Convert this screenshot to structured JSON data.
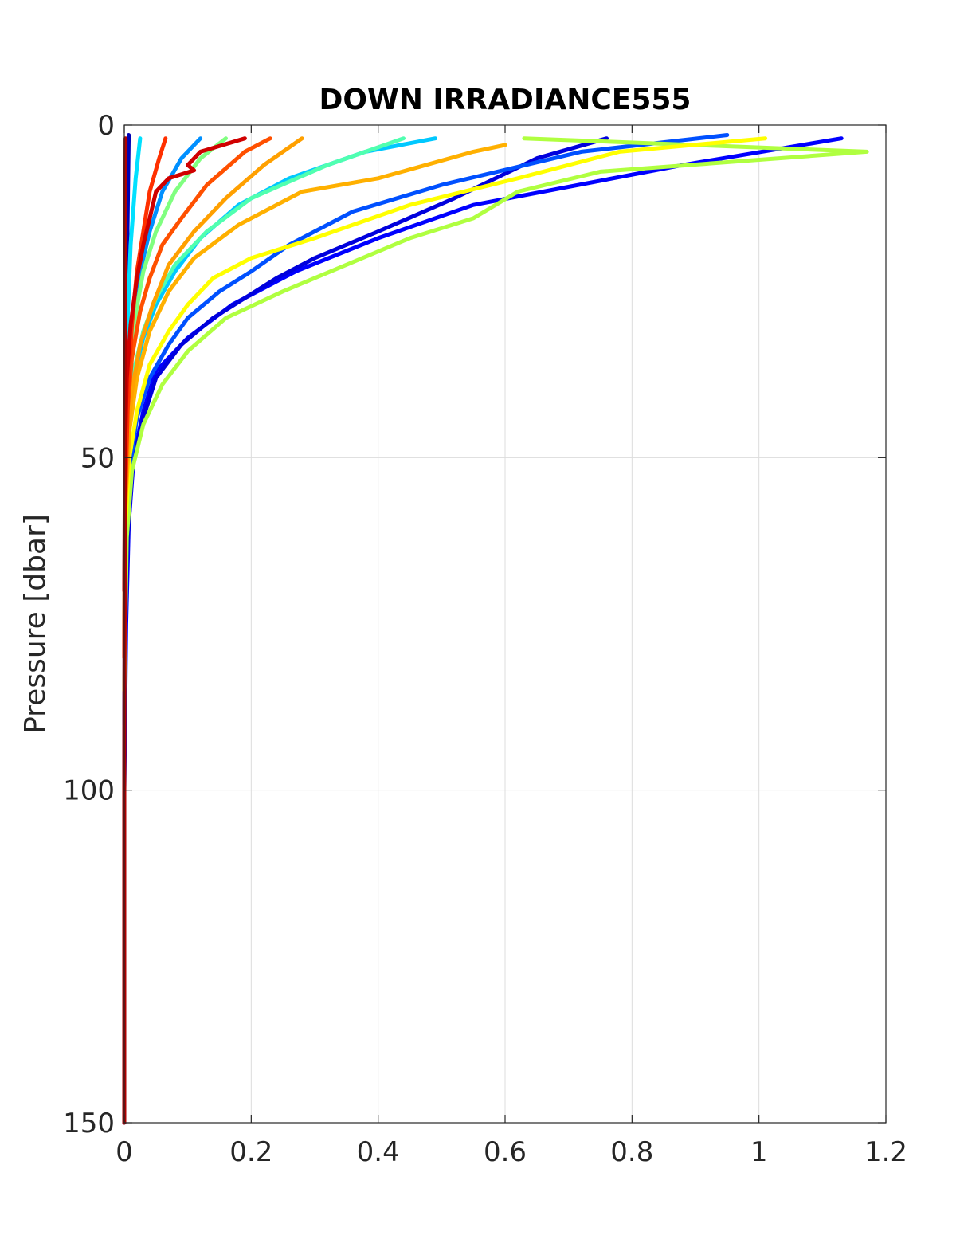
{
  "chart_data": {
    "type": "line",
    "title": "DOWN IRRADIANCE555",
    "xlabel": "",
    "ylabel": "Pressure [dbar]",
    "xlim": [
      0,
      1.2
    ],
    "ylim": [
      0,
      150
    ],
    "y_reversed": true,
    "grid": true,
    "xticks": [
      "0",
      "0.2",
      "0.4",
      "0.6",
      "0.8",
      "1",
      "1.2"
    ],
    "yticks": [
      "0",
      "50",
      "100",
      "150"
    ],
    "series": [
      {
        "color": "#0000b3",
        "x": [
          0.007,
          0.003,
          0.001,
          0,
          0
        ],
        "y": [
          1.5,
          30,
          60,
          100,
          150
        ]
      },
      {
        "color": "#0000ff",
        "x": [
          1.13,
          0.88,
          0.55,
          0.4,
          0.27,
          0.17,
          0.1,
          0.05,
          0.03,
          0.015,
          0.007,
          0.003,
          0
        ],
        "y": [
          2,
          6,
          12,
          17,
          22,
          27,
          32,
          37,
          43,
          50,
          60,
          75,
          100
        ]
      },
      {
        "color": "#0000dd",
        "x": [
          0.76,
          0.65,
          0.52,
          0.4,
          0.3,
          0.24,
          0.19,
          0.14,
          0.09,
          0.05,
          0.03,
          0.012,
          0.004,
          0
        ],
        "y": [
          2,
          5,
          11,
          16,
          20,
          23,
          26,
          29,
          33,
          38,
          44,
          52,
          65,
          90
        ]
      },
      {
        "color": "#0050ff",
        "x": [
          0.95,
          0.72,
          0.5,
          0.36,
          0.26,
          0.2,
          0.15,
          0.1,
          0.07,
          0.04,
          0.02,
          0.008,
          0.002,
          0
        ],
        "y": [
          1.5,
          4,
          9,
          13,
          18,
          22,
          25,
          29,
          33,
          38,
          44,
          52,
          65,
          90
        ]
      },
      {
        "color": "#0090ff",
        "x": [
          0.12,
          0.09,
          0.06,
          0.04,
          0.025,
          0.015,
          0.008,
          0.003,
          0
        ],
        "y": [
          2,
          5,
          10,
          16,
          22,
          30,
          40,
          55,
          80
        ]
      },
      {
        "color": "#00c8ff",
        "x": [
          0.49,
          0.38,
          0.26,
          0.18,
          0.12,
          0.08,
          0.05,
          0.03,
          0.015,
          0.006,
          0.002,
          0
        ],
        "y": [
          2,
          4,
          8,
          12,
          17,
          22,
          27,
          32,
          38,
          46,
          57,
          80
        ]
      },
      {
        "color": "#00e0ff",
        "x": [
          0.025,
          0.018,
          0.01,
          0.005,
          0.002,
          0
        ],
        "y": [
          2,
          8,
          18,
          30,
          45,
          70
        ]
      },
      {
        "color": "#50ffb0",
        "x": [
          0.44,
          0.32,
          0.2,
          0.13,
          0.08,
          0.05,
          0.03,
          0.015,
          0.006,
          0.002,
          0
        ],
        "y": [
          2,
          6,
          11,
          16,
          21,
          26,
          31,
          37,
          45,
          55,
          75
        ]
      },
      {
        "color": "#80ff80",
        "x": [
          0.16,
          0.12,
          0.08,
          0.05,
          0.03,
          0.015,
          0.006,
          0.002,
          0
        ],
        "y": [
          2,
          5,
          10,
          16,
          22,
          30,
          40,
          55,
          80
        ]
      },
      {
        "color": "#b0ff40",
        "x": [
          0.63,
          0.9,
          1.17,
          0.75,
          0.62,
          0.55,
          0.45,
          0.35,
          0.25,
          0.16,
          0.1,
          0.06,
          0.03,
          0.012,
          0.004,
          0
        ],
        "y": [
          2,
          3,
          4,
          7,
          10,
          14,
          17,
          21,
          25,
          29,
          34,
          39,
          45,
          52,
          62,
          85
        ]
      },
      {
        "color": "#ffff00",
        "x": [
          1.01,
          0.78,
          0.62,
          0.45,
          0.3,
          0.2,
          0.14,
          0.1,
          0.07,
          0.04,
          0.02,
          0.008,
          0.002,
          0
        ],
        "y": [
          2,
          4,
          8,
          12,
          17,
          20,
          23,
          27,
          31,
          36,
          43,
          50,
          60,
          80
        ]
      },
      {
        "color": "#ffb000",
        "x": [
          0.6,
          0.55,
          0.4,
          0.28,
          0.18,
          0.11,
          0.07,
          0.04,
          0.02,
          0.008,
          0.002,
          0
        ],
        "y": [
          3,
          4,
          8,
          10,
          15,
          20,
          25,
          31,
          38,
          46,
          57,
          80
        ]
      },
      {
        "color": "#ffa000",
        "x": [
          0.28,
          0.22,
          0.16,
          0.11,
          0.07,
          0.045,
          0.025,
          0.012,
          0.005,
          0.001,
          0
        ],
        "y": [
          2,
          6,
          11,
          16,
          21,
          27,
          33,
          40,
          48,
          60,
          80
        ]
      },
      {
        "color": "#ff5000",
        "x": [
          0.23,
          0.19,
          0.13,
          0.09,
          0.06,
          0.04,
          0.025,
          0.012,
          0.005,
          0.001,
          0
        ],
        "y": [
          2,
          4,
          9,
          14,
          18,
          23,
          28,
          35,
          43,
          55,
          80
        ]
      },
      {
        "color": "#ff3000",
        "x": [
          0.065,
          0.055,
          0.04,
          0.03,
          0.02,
          0.012,
          0.006,
          0.002,
          0
        ],
        "y": [
          2,
          5,
          10,
          16,
          22,
          30,
          40,
          55,
          80
        ]
      },
      {
        "color": "#d00000",
        "x": [
          0.19,
          0.12,
          0.1,
          0.11,
          0.07,
          0.05,
          0.04,
          0.03,
          0.02,
          0.01,
          0.004,
          0.001,
          0
        ],
        "y": [
          2,
          4,
          6,
          6.8,
          8,
          10,
          14,
          18,
          23,
          30,
          38,
          50,
          70
        ]
      },
      {
        "color": "#b00000",
        "x": [
          0.002,
          0.001,
          0,
          0
        ],
        "y": [
          2,
          40,
          100,
          150
        ]
      }
    ]
  }
}
